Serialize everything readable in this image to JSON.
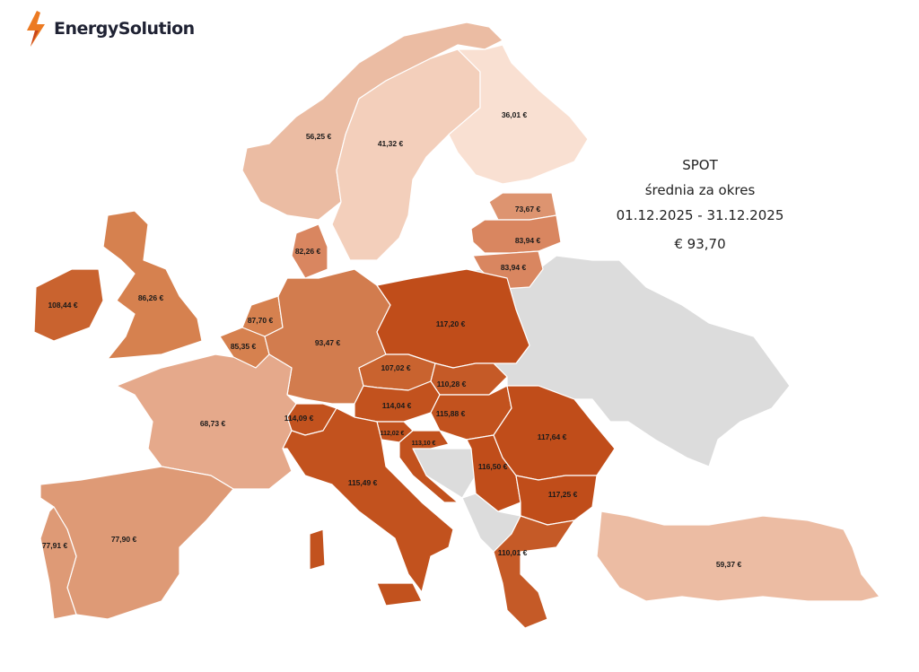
{
  "brand": {
    "name": "EnergySolution",
    "icon": "lightning-bolt-icon",
    "accent": "#e8701f"
  },
  "info": {
    "title": "SPOT",
    "subtitle": "średnia za okres",
    "period": "01.12.2025 - 31.12.2025",
    "average": "€ 93,70"
  },
  "colors": {
    "no_data": "#dcdcdc",
    "scale": [
      "#f9e0d2",
      "#f3cfbb",
      "#ebbca3",
      "#e5a98b",
      "#dd9470",
      "#d27c4e",
      "#c9632f",
      "#c04d1a"
    ]
  },
  "countries": {
    "NO": {
      "price": "56,25 €"
    },
    "SE": {
      "price": "41,32 €"
    },
    "FI": {
      "price": "36,01 €"
    },
    "EE": {
      "price": "73,67 €"
    },
    "LV": {
      "price": "83,94 €"
    },
    "LT": {
      "price": "83,94 €"
    },
    "DK": {
      "price": "82,26 €"
    },
    "GB": {
      "price": "86,26 €"
    },
    "IE": {
      "price": "108,44 €"
    },
    "NL": {
      "price": "87,70 €"
    },
    "BE": {
      "price": "85,35 €"
    },
    "DE": {
      "price": "93,47 €"
    },
    "PL": {
      "price": "117,20 €"
    },
    "CZ": {
      "price": "107,02 €"
    },
    "SK": {
      "price": "110,28 €"
    },
    "AT": {
      "price": "114,04 €"
    },
    "HU": {
      "price": "115,88 €"
    },
    "CH": {
      "price": "114,09 €"
    },
    "SI": {
      "price": "112,02 €"
    },
    "HR": {
      "price": "113,10 €"
    },
    "RS": {
      "price": "116,50 €"
    },
    "RO": {
      "price": "117,64 €"
    },
    "BG": {
      "price": "117,25 €"
    },
    "IT": {
      "price": "115,49 €"
    },
    "GR": {
      "price": "110,01 €"
    },
    "FR": {
      "price": "68,73 €"
    },
    "ES": {
      "price": "77,90 €"
    },
    "PT": {
      "price": "77,91 €"
    },
    "TR": {
      "price": "59,37 €"
    }
  }
}
